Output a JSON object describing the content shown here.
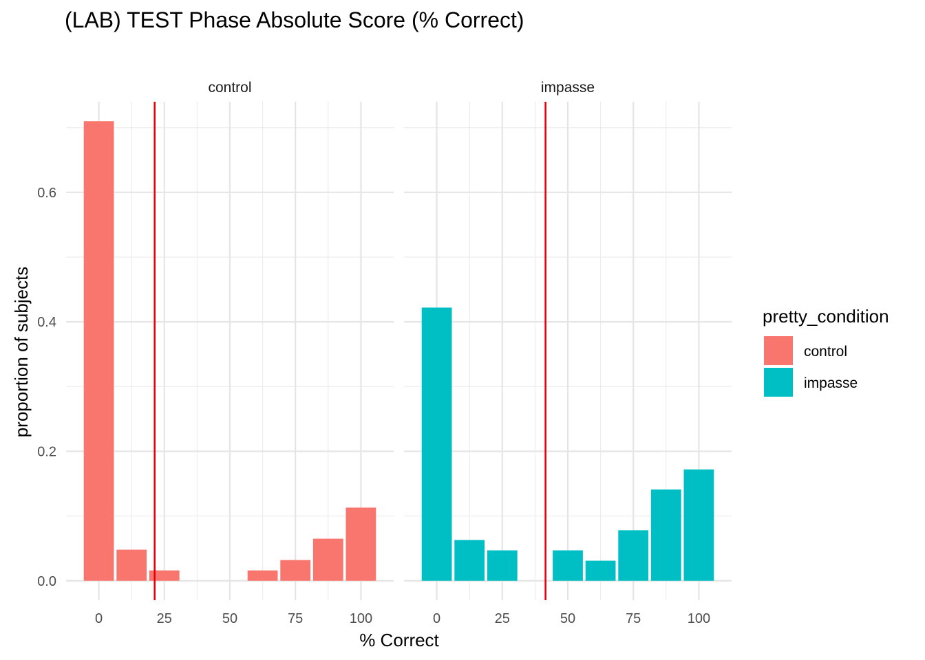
{
  "chart_data": {
    "type": "bar",
    "title": "(LAB) TEST Phase Absolute Score (% Correct)",
    "xlabel": "% Correct",
    "ylabel": "proportion of subjects",
    "xlim": [
      -12.5,
      112.5
    ],
    "ylim": [
      -0.03,
      0.74
    ],
    "x_ticks": [
      0,
      25,
      50,
      75,
      100
    ],
    "x_tick_labels": [
      "0",
      "25",
      "50",
      "75",
      "100"
    ],
    "y_ticks": [
      0.0,
      0.2,
      0.4,
      0.6
    ],
    "y_tick_labels": [
      "0.0",
      "0.2",
      "0.4",
      "0.6"
    ],
    "bin_width": 11.5,
    "grid": true,
    "legend": {
      "title": "pretty_condition",
      "placement": "right",
      "entries": [
        {
          "label": "control",
          "color": "#F8766D"
        },
        {
          "label": "impasse",
          "color": "#00BFC4"
        }
      ]
    },
    "reference_line_color": "#E8000B",
    "panels": [
      {
        "strip_label": "control",
        "color": "#F8766D",
        "reference_line_x": 21.3,
        "bars": [
          {
            "x": 0,
            "value": 0.71
          },
          {
            "x": 12.5,
            "value": 0.048
          },
          {
            "x": 25,
            "value": 0.016
          },
          {
            "x": 37.5,
            "value": 0
          },
          {
            "x": 50,
            "value": 0
          },
          {
            "x": 62.5,
            "value": 0.016
          },
          {
            "x": 75,
            "value": 0.032
          },
          {
            "x": 87.5,
            "value": 0.065
          },
          {
            "x": 100,
            "value": 0.113
          }
        ]
      },
      {
        "strip_label": "impasse",
        "color": "#00BFC4",
        "reference_line_x": 41.5,
        "bars": [
          {
            "x": 0,
            "value": 0.422
          },
          {
            "x": 12.5,
            "value": 0.063
          },
          {
            "x": 25,
            "value": 0.047
          },
          {
            "x": 37.5,
            "value": 0
          },
          {
            "x": 50,
            "value": 0.047
          },
          {
            "x": 62.5,
            "value": 0.031
          },
          {
            "x": 75,
            "value": 0.078
          },
          {
            "x": 87.5,
            "value": 0.141
          },
          {
            "x": 100,
            "value": 0.172
          }
        ]
      }
    ]
  }
}
